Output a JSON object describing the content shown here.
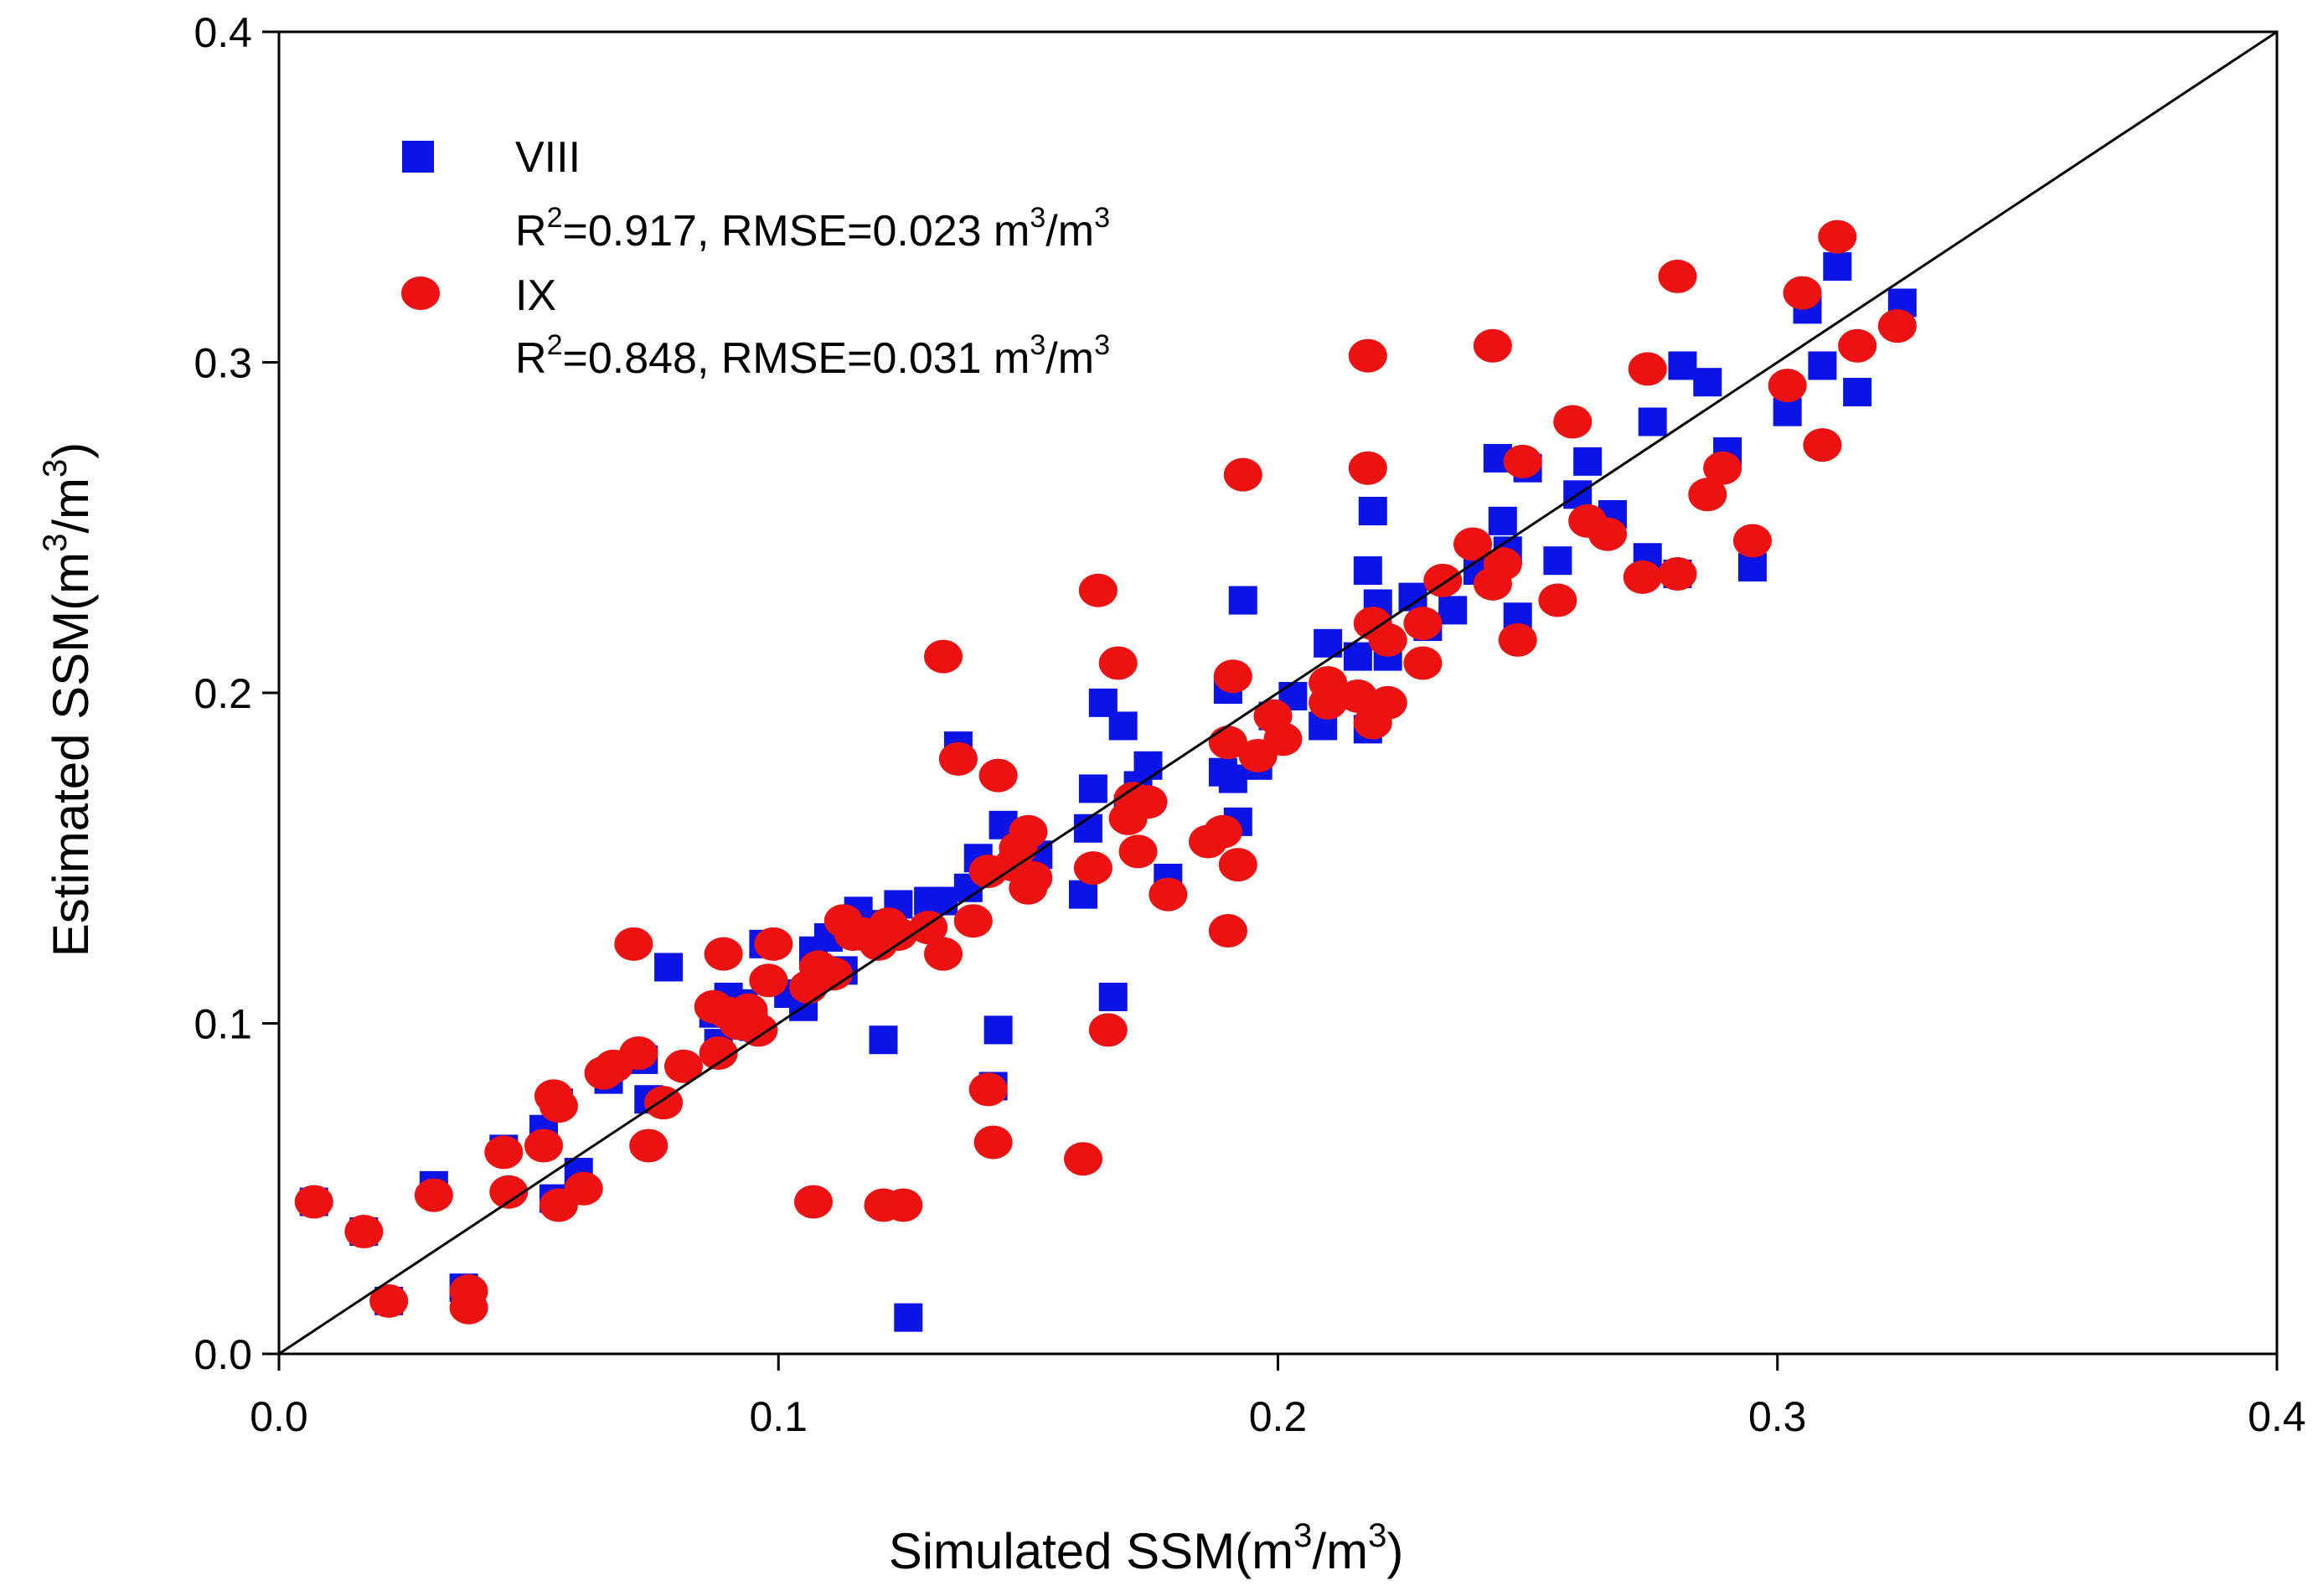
{
  "chart_data": {
    "type": "scatter",
    "xlabel": {
      "main": "Simulated SSM(m",
      "sup1": "3",
      "mid": "/m",
      "sup2": "3",
      "end": ")"
    },
    "ylabel": {
      "main": "Estimated SSM(m",
      "sup1": "3",
      "mid": "/m",
      "sup2": "3",
      "end": ")"
    },
    "xlim": [
      0.0,
      0.4
    ],
    "ylim": [
      0.0,
      0.4
    ],
    "xticks": [
      0.0,
      0.1,
      0.2,
      0.3,
      0.4
    ],
    "yticks": [
      0.0,
      0.1,
      0.2,
      0.3,
      0.4
    ],
    "xtick_labels": [
      "0.0",
      "0.1",
      "0.2",
      "0.3",
      "0.4"
    ],
    "ytick_labels": [
      "0.0",
      "0.1",
      "0.2",
      "0.3",
      "0.4"
    ],
    "reference_line": {
      "type": "1:1",
      "from": [
        0.0,
        0.0
      ],
      "to": [
        0.4,
        0.4
      ]
    },
    "grid": false,
    "legend_position": "upper-left",
    "series": [
      {
        "name": "VIII",
        "marker": "square",
        "color": "#0a14e6",
        "stats": {
          "r2_prefix": "R",
          "r2_sup": "2",
          "r2_text": "=0.917, RMSE=0.023 m",
          "unit_sup1": "3",
          "unit_mid": "/m",
          "unit_sup2": "3"
        },
        "points": [
          [
            0.007,
            0.046
          ],
          [
            0.017,
            0.037
          ],
          [
            0.022,
            0.016
          ],
          [
            0.031,
            0.051
          ],
          [
            0.037,
            0.02
          ],
          [
            0.038,
            0.017
          ],
          [
            0.045,
            0.062
          ],
          [
            0.053,
            0.068
          ],
          [
            0.055,
            0.047
          ],
          [
            0.056,
            0.076
          ],
          [
            0.06,
            0.055
          ],
          [
            0.066,
            0.083
          ],
          [
            0.073,
            0.089
          ],
          [
            0.074,
            0.077
          ],
          [
            0.078,
            0.117
          ],
          [
            0.087,
            0.103
          ],
          [
            0.088,
            0.094
          ],
          [
            0.09,
            0.108
          ],
          [
            0.093,
            0.106
          ],
          [
            0.095,
            0.099
          ],
          [
            0.097,
            0.124
          ],
          [
            0.102,
            0.109
          ],
          [
            0.105,
            0.105
          ],
          [
            0.107,
            0.122
          ],
          [
            0.11,
            0.126
          ],
          [
            0.113,
            0.116
          ],
          [
            0.116,
            0.134
          ],
          [
            0.119,
            0.13
          ],
          [
            0.121,
            0.095
          ],
          [
            0.124,
            0.136
          ],
          [
            0.126,
            0.011
          ],
          [
            0.13,
            0.137
          ],
          [
            0.133,
            0.137
          ],
          [
            0.136,
            0.184
          ],
          [
            0.138,
            0.141
          ],
          [
            0.14,
            0.15
          ],
          [
            0.143,
            0.081
          ],
          [
            0.144,
            0.098
          ],
          [
            0.145,
            0.16
          ],
          [
            0.149,
            0.155
          ],
          [
            0.152,
            0.151
          ],
          [
            0.161,
            0.139
          ],
          [
            0.162,
            0.159
          ],
          [
            0.163,
            0.171
          ],
          [
            0.165,
            0.197
          ],
          [
            0.167,
            0.108
          ],
          [
            0.169,
            0.19
          ],
          [
            0.17,
            0.165
          ],
          [
            0.172,
            0.172
          ],
          [
            0.174,
            0.178
          ],
          [
            0.178,
            0.144
          ],
          [
            0.189,
            0.176
          ],
          [
            0.19,
            0.201
          ],
          [
            0.191,
            0.174
          ],
          [
            0.192,
            0.161
          ],
          [
            0.193,
            0.228
          ],
          [
            0.196,
            0.178
          ],
          [
            0.199,
            0.193
          ],
          [
            0.203,
            0.199
          ],
          [
            0.209,
            0.19
          ],
          [
            0.21,
            0.215
          ],
          [
            0.216,
            0.211
          ],
          [
            0.218,
            0.237
          ],
          [
            0.218,
            0.189
          ],
          [
            0.219,
            0.255
          ],
          [
            0.22,
            0.227
          ],
          [
            0.222,
            0.211
          ],
          [
            0.227,
            0.229
          ],
          [
            0.23,
            0.22
          ],
          [
            0.235,
            0.225
          ],
          [
            0.24,
            0.237
          ],
          [
            0.244,
            0.271
          ],
          [
            0.245,
            0.252
          ],
          [
            0.246,
            0.243
          ],
          [
            0.248,
            0.223
          ],
          [
            0.25,
            0.268
          ],
          [
            0.256,
            0.24
          ],
          [
            0.26,
            0.26
          ],
          [
            0.262,
            0.27
          ],
          [
            0.267,
            0.254
          ],
          [
            0.274,
            0.241
          ],
          [
            0.275,
            0.282
          ],
          [
            0.28,
            0.236
          ],
          [
            0.281,
            0.299
          ],
          [
            0.286,
            0.294
          ],
          [
            0.29,
            0.273
          ],
          [
            0.295,
            0.238
          ],
          [
            0.302,
            0.285
          ],
          [
            0.306,
            0.316
          ],
          [
            0.309,
            0.299
          ],
          [
            0.312,
            0.329
          ],
          [
            0.316,
            0.291
          ],
          [
            0.325,
            0.318
          ]
        ]
      },
      {
        "name": "IX",
        "marker": "circle",
        "color": "#ee1111",
        "stats": {
          "r2_prefix": "R",
          "r2_sup": "2",
          "r2_text": "=0.848, RMSE=0.031 m",
          "unit_sup1": "3",
          "unit_mid": "/m",
          "unit_sup2": "3"
        },
        "points": [
          [
            0.007,
            0.046
          ],
          [
            0.017,
            0.037
          ],
          [
            0.022,
            0.016
          ],
          [
            0.031,
            0.048
          ],
          [
            0.038,
            0.019
          ],
          [
            0.038,
            0.014
          ],
          [
            0.045,
            0.061
          ],
          [
            0.046,
            0.049
          ],
          [
            0.053,
            0.063
          ],
          [
            0.055,
            0.078
          ],
          [
            0.056,
            0.075
          ],
          [
            0.056,
            0.045
          ],
          [
            0.061,
            0.05
          ],
          [
            0.065,
            0.085
          ],
          [
            0.067,
            0.087
          ],
          [
            0.071,
            0.124
          ],
          [
            0.072,
            0.091
          ],
          [
            0.074,
            0.063
          ],
          [
            0.077,
            0.076
          ],
          [
            0.081,
            0.087
          ],
          [
            0.087,
            0.105
          ],
          [
            0.088,
            0.091
          ],
          [
            0.089,
            0.121
          ],
          [
            0.09,
            0.103
          ],
          [
            0.092,
            0.1
          ],
          [
            0.094,
            0.104
          ],
          [
            0.096,
            0.098
          ],
          [
            0.098,
            0.113
          ],
          [
            0.099,
            0.124
          ],
          [
            0.106,
            0.111
          ],
          [
            0.107,
            0.046
          ],
          [
            0.108,
            0.117
          ],
          [
            0.111,
            0.115
          ],
          [
            0.113,
            0.131
          ],
          [
            0.115,
            0.127
          ],
          [
            0.117,
            0.127
          ],
          [
            0.12,
            0.124
          ],
          [
            0.121,
            0.045
          ],
          [
            0.122,
            0.13
          ],
          [
            0.124,
            0.127
          ],
          [
            0.125,
            0.045
          ],
          [
            0.13,
            0.129
          ],
          [
            0.133,
            0.121
          ],
          [
            0.133,
            0.211
          ],
          [
            0.136,
            0.18
          ],
          [
            0.139,
            0.131
          ],
          [
            0.142,
            0.146
          ],
          [
            0.142,
            0.08
          ],
          [
            0.143,
            0.064
          ],
          [
            0.144,
            0.175
          ],
          [
            0.147,
            0.148
          ],
          [
            0.148,
            0.153
          ],
          [
            0.15,
            0.141
          ],
          [
            0.15,
            0.158
          ],
          [
            0.151,
            0.144
          ],
          [
            0.161,
            0.059
          ],
          [
            0.163,
            0.147
          ],
          [
            0.164,
            0.231
          ],
          [
            0.166,
            0.098
          ],
          [
            0.168,
            0.209
          ],
          [
            0.17,
            0.162
          ],
          [
            0.171,
            0.168
          ],
          [
            0.172,
            0.152
          ],
          [
            0.174,
            0.167
          ],
          [
            0.178,
            0.139
          ],
          [
            0.186,
            0.155
          ],
          [
            0.189,
            0.158
          ],
          [
            0.19,
            0.128
          ],
          [
            0.19,
            0.185
          ],
          [
            0.191,
            0.205
          ],
          [
            0.192,
            0.148
          ],
          [
            0.193,
            0.266
          ],
          [
            0.196,
            0.181
          ],
          [
            0.199,
            0.193
          ],
          [
            0.201,
            0.186
          ],
          [
            0.21,
            0.197
          ],
          [
            0.21,
            0.203
          ],
          [
            0.216,
            0.199
          ],
          [
            0.218,
            0.302
          ],
          [
            0.218,
            0.268
          ],
          [
            0.219,
            0.191
          ],
          [
            0.219,
            0.221
          ],
          [
            0.222,
            0.216
          ],
          [
            0.222,
            0.197
          ],
          [
            0.229,
            0.209
          ],
          [
            0.229,
            0.221
          ],
          [
            0.233,
            0.234
          ],
          [
            0.239,
            0.245
          ],
          [
            0.243,
            0.305
          ],
          [
            0.243,
            0.233
          ],
          [
            0.245,
            0.239
          ],
          [
            0.248,
            0.216
          ],
          [
            0.249,
            0.27
          ],
          [
            0.256,
            0.228
          ],
          [
            0.259,
            0.282
          ],
          [
            0.262,
            0.252
          ],
          [
            0.266,
            0.248
          ],
          [
            0.273,
            0.235
          ],
          [
            0.274,
            0.298
          ],
          [
            0.28,
            0.326
          ],
          [
            0.28,
            0.236
          ],
          [
            0.286,
            0.26
          ],
          [
            0.289,
            0.268
          ],
          [
            0.295,
            0.246
          ],
          [
            0.302,
            0.293
          ],
          [
            0.305,
            0.321
          ],
          [
            0.309,
            0.275
          ],
          [
            0.312,
            0.338
          ],
          [
            0.316,
            0.305
          ],
          [
            0.324,
            0.311
          ]
        ]
      }
    ]
  }
}
